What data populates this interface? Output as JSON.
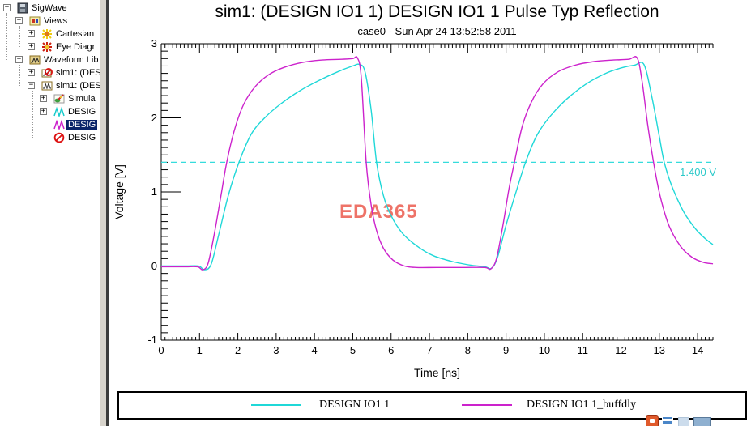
{
  "sidebar": {
    "items": [
      {
        "label": "SigWave",
        "level": 0,
        "expand": "minus",
        "icon": "disk-icon",
        "selected": false
      },
      {
        "label": "Views",
        "level": 1,
        "expand": "minus",
        "icon": "views-icon",
        "selected": false
      },
      {
        "label": "Cartesian",
        "level": 2,
        "expand": "plus",
        "icon": "cartesian-icon",
        "selected": false
      },
      {
        "label": "Eye Diagr",
        "level": 2,
        "expand": "plus",
        "icon": "eye-diagram-icon",
        "selected": false
      },
      {
        "label": "Waveform Lib",
        "level": 1,
        "expand": "minus",
        "icon": "waveform-lib-icon",
        "selected": false
      },
      {
        "label": "sim1: (DES",
        "level": 2,
        "expand": "plus",
        "icon": "sim-blocked-icon",
        "selected": false
      },
      {
        "label": "sim1: (DES",
        "level": 2,
        "expand": "minus",
        "icon": "sim-icon",
        "selected": false
      },
      {
        "label": "Simula",
        "level": 3,
        "expand": "plus",
        "icon": "simulation-icon",
        "selected": false
      },
      {
        "label": "DESIG",
        "level": 3,
        "expand": "plus",
        "icon": "wave-cyan-icon",
        "selected": false
      },
      {
        "label": "DESIG",
        "level": 3,
        "expand": "none",
        "icon": "wave-magenta-icon",
        "selected": true
      },
      {
        "label": "DESIG",
        "level": 3,
        "expand": "none",
        "icon": "blocked-icon",
        "selected": false
      }
    ]
  },
  "chart": {
    "title": "sim1: (DESIGN IO1 1) DESIGN IO1 1 Pulse Typ Reflection",
    "subtitle": "case0 - Sun Apr 24 13:52:58 2011",
    "watermark": "EDA365",
    "watermark_color": "#ee7368"
  },
  "chart_data": {
    "type": "line",
    "title": "sim1: (DESIGN IO1 1) DESIGN IO1 1 Pulse Typ Reflection",
    "subtitle": "case0 - Sun Apr 24 13:52:58 2011",
    "xlabel": "Time [ns]",
    "ylabel": "Voltage [V]",
    "xlim": [
      0,
      14.4
    ],
    "ylim": [
      -1,
      3
    ],
    "x_ticks": [
      0,
      1,
      2,
      3,
      4,
      5,
      6,
      7,
      8,
      9,
      10,
      11,
      12,
      13,
      14
    ],
    "x_minor_step": 0.1,
    "y_ticks": [
      -1,
      0,
      1,
      2,
      3
    ],
    "y_minor_step": 0.1,
    "grid": false,
    "legend_position": "bottom",
    "threshold": {
      "value": 1.4,
      "label": "1.400 V",
      "style": "dashed",
      "color": "#35dcdc"
    },
    "series": [
      {
        "name": "DESIGN IO1 1",
        "color": "#1fd8d8",
        "points": [
          [
            0,
            0
          ],
          [
            0.6,
            0
          ],
          [
            0.98,
            0
          ],
          [
            1.12,
            -0.05
          ],
          [
            1.3,
            0.02
          ],
          [
            1.5,
            0.42
          ],
          [
            1.75,
            0.95
          ],
          [
            2.03,
            1.4
          ],
          [
            2.35,
            1.78
          ],
          [
            2.7,
            2.0
          ],
          [
            3.1,
            2.18
          ],
          [
            3.6,
            2.36
          ],
          [
            4.1,
            2.5
          ],
          [
            4.6,
            2.62
          ],
          [
            5.0,
            2.7
          ],
          [
            5.18,
            2.72
          ],
          [
            5.32,
            2.62
          ],
          [
            5.48,
            2.1
          ],
          [
            5.62,
            1.4
          ],
          [
            5.8,
            0.95
          ],
          [
            6.0,
            0.68
          ],
          [
            6.3,
            0.44
          ],
          [
            6.7,
            0.26
          ],
          [
            7.1,
            0.14
          ],
          [
            7.6,
            0.06
          ],
          [
            8.1,
            0.01
          ],
          [
            8.45,
            -0.01
          ],
          [
            8.62,
            -0.03
          ],
          [
            8.78,
            0.12
          ],
          [
            9.0,
            0.55
          ],
          [
            9.25,
            0.98
          ],
          [
            9.51,
            1.4
          ],
          [
            9.8,
            1.76
          ],
          [
            10.15,
            2.02
          ],
          [
            10.6,
            2.26
          ],
          [
            11.1,
            2.46
          ],
          [
            11.6,
            2.6
          ],
          [
            12.05,
            2.68
          ],
          [
            12.35,
            2.71
          ],
          [
            12.6,
            2.72
          ],
          [
            12.8,
            2.3
          ],
          [
            13.0,
            1.75
          ],
          [
            13.13,
            1.4
          ],
          [
            13.35,
            1.05
          ],
          [
            13.65,
            0.72
          ],
          [
            13.95,
            0.5
          ],
          [
            14.2,
            0.37
          ],
          [
            14.4,
            0.29
          ]
        ]
      },
      {
        "name": "DESIGN IO1 1_buffdly",
        "color": "#cc22cc",
        "points": [
          [
            0,
            -0.01
          ],
          [
            0.6,
            -0.01
          ],
          [
            0.95,
            -0.01
          ],
          [
            1.08,
            -0.05
          ],
          [
            1.22,
            0.03
          ],
          [
            1.38,
            0.42
          ],
          [
            1.55,
            0.92
          ],
          [
            1.71,
            1.4
          ],
          [
            1.92,
            1.85
          ],
          [
            2.15,
            2.18
          ],
          [
            2.45,
            2.42
          ],
          [
            2.8,
            2.58
          ],
          [
            3.2,
            2.68
          ],
          [
            3.7,
            2.75
          ],
          [
            4.2,
            2.78
          ],
          [
            4.7,
            2.79
          ],
          [
            5.0,
            2.8
          ],
          [
            5.12,
            2.81
          ],
          [
            5.22,
            2.55
          ],
          [
            5.35,
            1.4
          ],
          [
            5.48,
            0.82
          ],
          [
            5.62,
            0.48
          ],
          [
            5.8,
            0.24
          ],
          [
            6.05,
            0.08
          ],
          [
            6.35,
            0.0
          ],
          [
            6.65,
            -0.02
          ],
          [
            7.2,
            -0.02
          ],
          [
            7.9,
            -0.02
          ],
          [
            8.45,
            -0.02
          ],
          [
            8.6,
            -0.04
          ],
          [
            8.75,
            0.1
          ],
          [
            8.92,
            0.55
          ],
          [
            9.08,
            1.05
          ],
          [
            9.22,
            1.4
          ],
          [
            9.42,
            1.88
          ],
          [
            9.65,
            2.2
          ],
          [
            9.95,
            2.45
          ],
          [
            10.35,
            2.62
          ],
          [
            10.8,
            2.71
          ],
          [
            11.3,
            2.76
          ],
          [
            11.8,
            2.78
          ],
          [
            12.2,
            2.79
          ],
          [
            12.42,
            2.81
          ],
          [
            12.55,
            2.5
          ],
          [
            12.7,
            1.9
          ],
          [
            12.85,
            1.4
          ],
          [
            13.02,
            0.95
          ],
          [
            13.25,
            0.55
          ],
          [
            13.55,
            0.27
          ],
          [
            13.85,
            0.12
          ],
          [
            14.15,
            0.05
          ],
          [
            14.4,
            0.03
          ]
        ]
      }
    ]
  },
  "ime_tray": {
    "icons": [
      "ime-red-icon",
      "ime-glyph-icon",
      "ime-light-icon",
      "ime-bar-icon"
    ]
  }
}
